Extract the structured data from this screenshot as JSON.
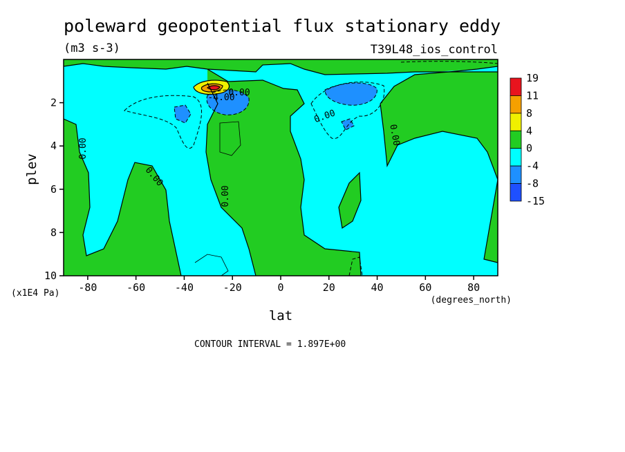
{
  "title": "poleward geopotential flux stationary eddy",
  "units": "(m3 s-3)",
  "run_label": "T39L48_ios_control",
  "footer": "CONTOUR INTERVAL = 1.897E+00",
  "chart_data": {
    "type": "heatmap",
    "variable": "poleward geopotential flux stationary eddy",
    "xlabel": "lat",
    "x_units": "(degrees_north)",
    "ylabel": "plev",
    "y_units": "(x1E4 Pa)",
    "xlim": [
      -90,
      90
    ],
    "ylim": [
      0,
      10
    ],
    "y_inverted": true,
    "x_ticks": [
      -80,
      -60,
      -40,
      -20,
      0,
      20,
      40,
      60,
      80
    ],
    "y_ticks": [
      2,
      4,
      6,
      8,
      10
    ],
    "contour_interval": 1.897,
    "contour_labels": [
      "0.00",
      "0.00",
      "0.00",
      "0.00",
      "0.00",
      "0.00",
      "-4.00"
    ],
    "colorbar": {
      "levels": [
        19,
        11,
        8,
        4,
        0,
        -4,
        -8,
        -15
      ],
      "colors": [
        "#e8141e",
        "#f5a000",
        "#f0f000",
        "#22cc22",
        "#00ffff",
        "#1e90ff",
        "#1e50ff"
      ]
    },
    "features": [
      {
        "kind": "max",
        "lat": -27,
        "plev": 1.4,
        "value": 19
      },
      {
        "kind": "min",
        "lat": -20,
        "plev": 2.2,
        "value": -8
      },
      {
        "kind": "min",
        "lat": 30,
        "plev": 1.7,
        "value": -8
      },
      {
        "kind": "min",
        "lat": -40,
        "plev": 2.6,
        "value": -8
      },
      {
        "kind": "min",
        "lat": 28,
        "plev": 3.0,
        "value": -8
      }
    ]
  }
}
